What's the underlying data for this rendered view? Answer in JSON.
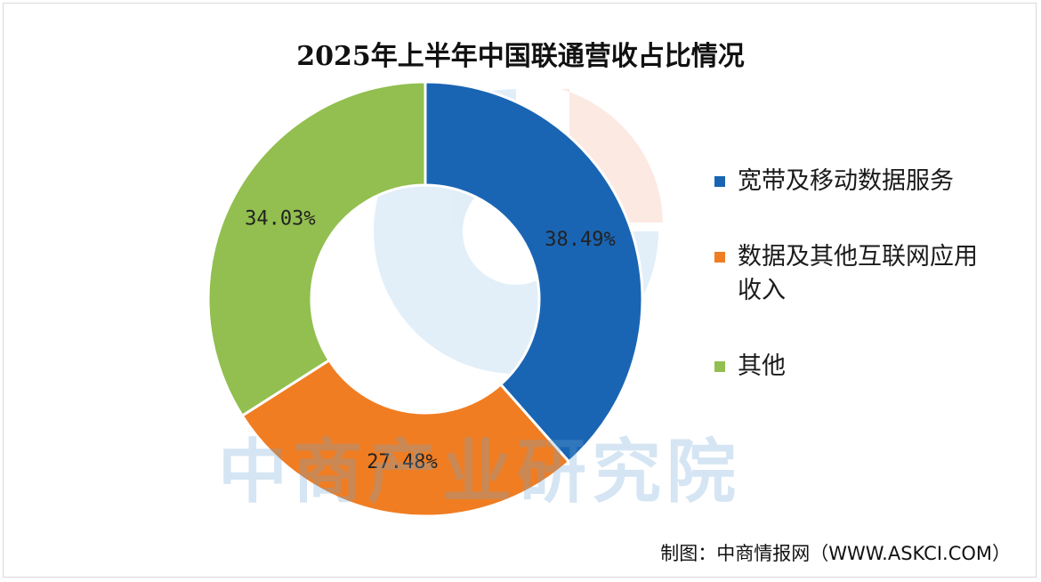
{
  "chart_data": {
    "type": "pie",
    "title": "2025年上半年中国联通营收占比情况",
    "donut": true,
    "legend_position": "right",
    "series": [
      {
        "name": "宽带及移动数据服务",
        "value": 38.49,
        "label": "38.49%",
        "color": "#1a65b3"
      },
      {
        "name": "数据及其他互联网应用收入",
        "value": 27.48,
        "label": "27.48%",
        "color": "#f07d22"
      },
      {
        "name": "其他",
        "value": 34.03,
        "label": "34.03%",
        "color": "#92bf4f"
      }
    ]
  },
  "legend": {
    "items": [
      {
        "label": "宽带及移动数据服务",
        "color": "#1a65b3"
      },
      {
        "label": "数据及其他互联网应用收入",
        "color": "#f07d22"
      },
      {
        "label": "其他",
        "color": "#92bf4f"
      }
    ]
  },
  "watermark": "中商产业研究院",
  "source": "制图：中商情报网（WWW.ASKCI.COM）"
}
